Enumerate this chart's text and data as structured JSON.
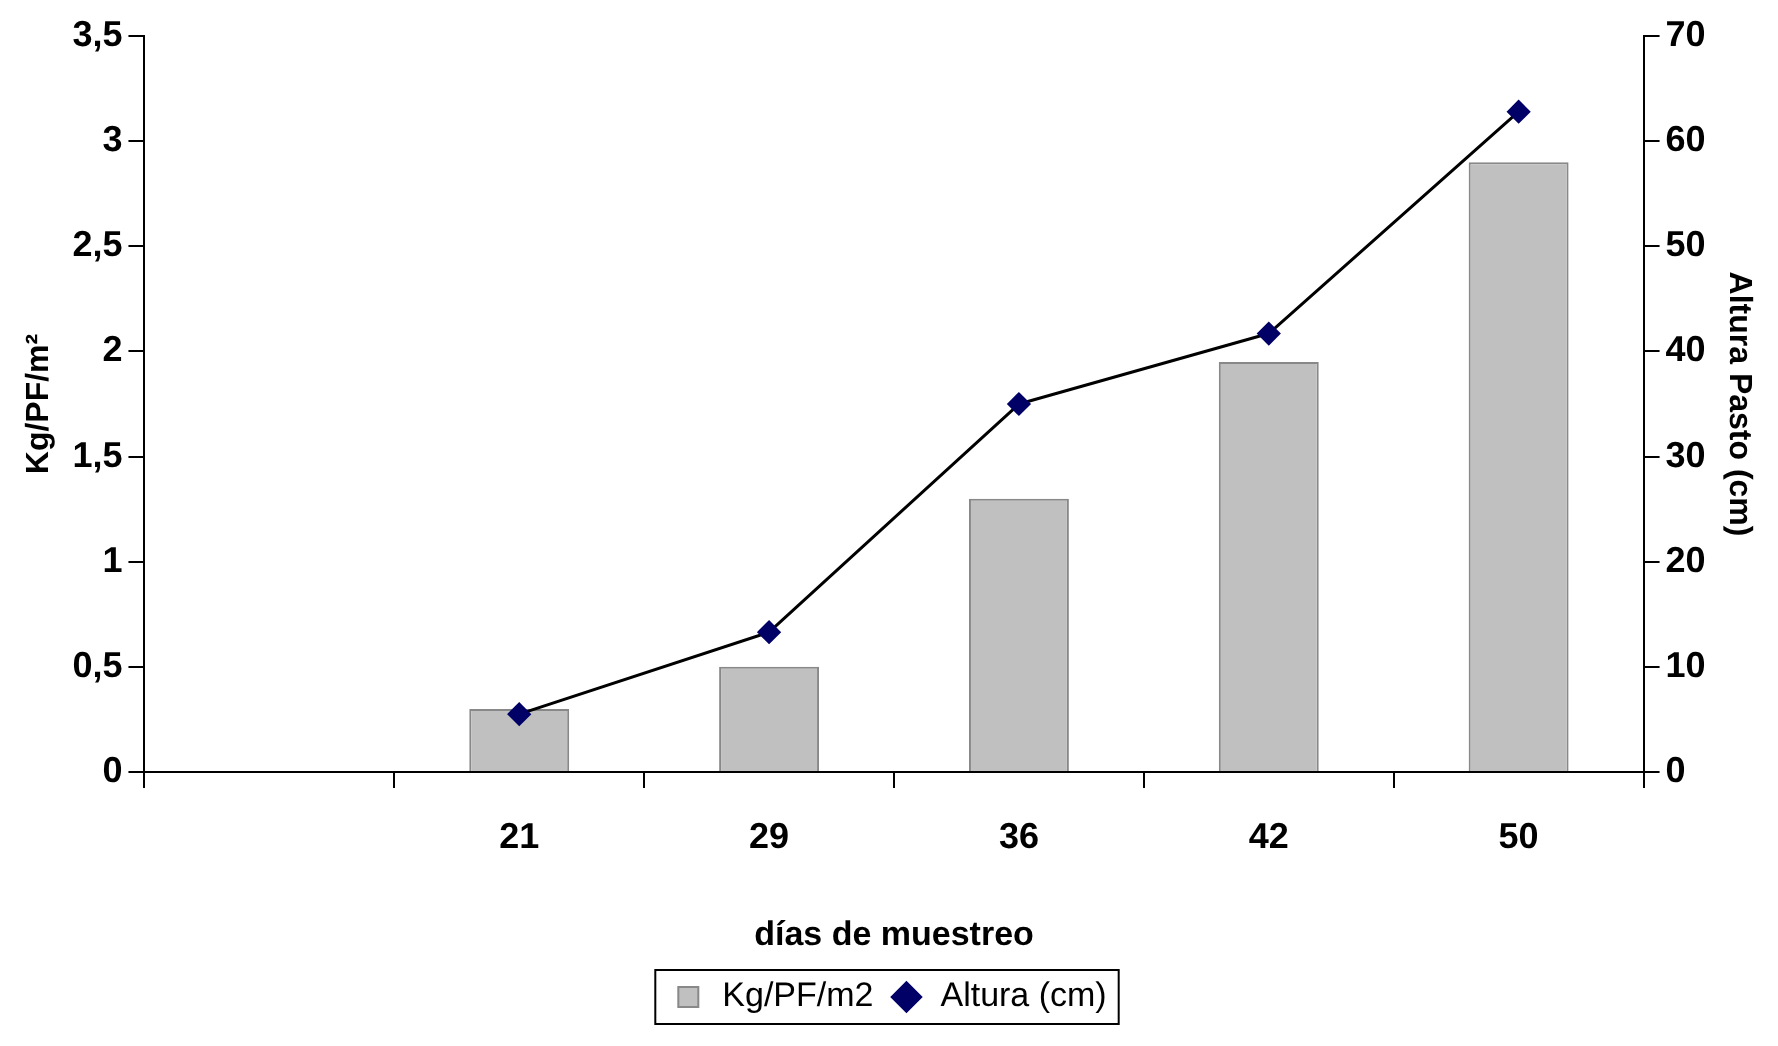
{
  "chart_data": {
    "type": "bar",
    "xlabel": "días de muestreo",
    "ylabel": "Kg/PF/m²",
    "y2label": "Altura Pasto (cm)",
    "categories": [
      null,
      "21",
      "29",
      "36",
      "42",
      "50"
    ],
    "series": [
      {
        "name": "Kg/PF/m2",
        "color": "#c0c0c0",
        "values": [
          null,
          0.3,
          0.5,
          1.3,
          1.95,
          2.9
        ]
      },
      {
        "name": "Altura (cm)",
        "type": "line",
        "axis": "y2",
        "color": "#000066",
        "marker": "diamond",
        "values": [
          null,
          5.5,
          13.3,
          35,
          41.7,
          62.8
        ]
      }
    ],
    "ylim": [
      0,
      3.5
    ],
    "yticks": [
      0,
      {
        "value": 0.5,
        "label": "0,5"
      },
      1,
      {
        "value": 1.5,
        "label": "1,5"
      },
      2,
      {
        "value": 2.5,
        "label": "2,5"
      },
      3,
      {
        "value": 3.5,
        "label": "3,5"
      }
    ],
    "y2lim": [
      0,
      70
    ],
    "y2ticks": [
      0,
      10,
      20,
      30,
      40,
      50,
      60,
      70
    ],
    "grid": false,
    "legend": "bottom"
  }
}
